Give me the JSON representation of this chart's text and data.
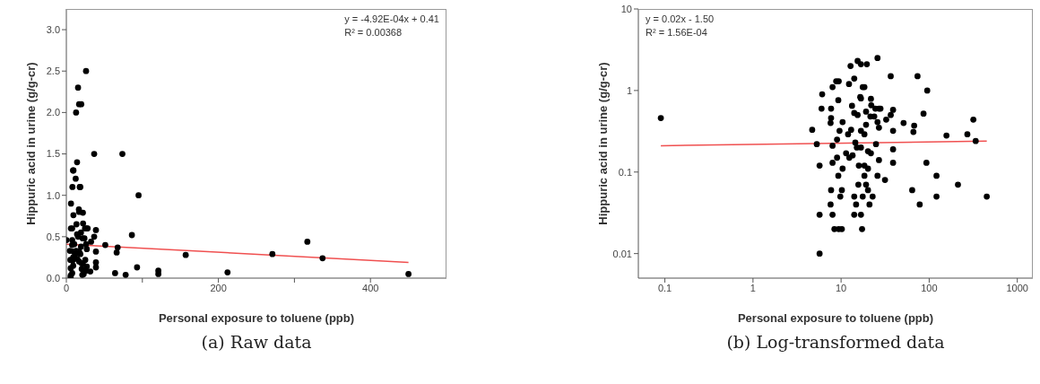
{
  "chart_data": [
    {
      "type": "scatter",
      "title": "(a) Raw data",
      "xlabel": "Personal exposure to toluene (ppb)",
      "ylabel": "Hippuric acid in urine (g/g-cr)",
      "annotations": [
        "y = -4.92E-04x + 0.41",
        "R² = 0.00368"
      ],
      "xlim": [
        0,
        500
      ],
      "xticks": [
        0,
        {
          "value": 100,
          "label": null
        },
        200,
        {
          "value": 300,
          "label": null
        },
        400
      ],
      "ylim": [
        0,
        3.25
      ],
      "yticks": [
        {
          "value": 0,
          "label": "0.0"
        },
        0.5,
        {
          "value": 1,
          "label": "1.0"
        },
        1.5,
        {
          "value": 2,
          "label": "2.0"
        },
        2.5,
        {
          "value": 3,
          "label": "3.0"
        }
      ],
      "grid": false,
      "legend": false,
      "marker": "circle",
      "series": [
        {
          "color": "#000000",
          "x": [
            0.09,
            4.7,
            5.7,
            5.7,
            5.7,
            5.3,
            6.1,
            6.0,
            7.7,
            8.0,
            8.8,
            9.4,
            9.3,
            7.7,
            7.7,
            7.6,
            8,
            9.0,
            9.6,
            10.4,
            9,
            12.8,
            12.3,
            14.1,
            15.4,
            16.8,
            19.6,
            17.6,
            18.4,
            16.5,
            16.8,
            13.3,
            14.1,
            15.4,
            13.0,
            12,
            14.5,
            16.8,
            16.8,
            18.4,
            19.2,
            19.2,
            21.8,
            22,
            21.5,
            23.8,
            24.5,
            26.9,
            28,
            25.9,
            26.9,
            24.9,
            26.9,
            20.2,
            21.8,
            20.2,
            22.8,
            21.0,
            25.9,
            25.9,
            31.5,
            36.6,
            38.9,
            36.6,
            32.5,
            38.9,
            38.9,
            38.9,
            51.2,
            67.5,
            66.2,
            64.1,
            73.7,
            78,
            86.2,
            95,
            93,
            121,
            121,
            157,
            212,
            271,
            317,
            337,
            450
          ],
          "values": [
            0.46,
            0.33,
            0.03,
            0.01,
            0.12,
            0.22,
            0.9,
            0.6,
            0.06,
            1.1,
            1.3,
            1.3,
            0.76,
            0.6,
            0.46,
            0.4,
            0.21,
            0.25,
            0.32,
            0.41,
            0.15,
            2.0,
            1.2,
            1.4,
            2.3,
            2.1,
            2.1,
            1.1,
            1.1,
            0.83,
            0.8,
            0.65,
            0.53,
            0.5,
            0.33,
            0.29,
            0.23,
            0.2,
            0.32,
            0.29,
            0.38,
            0.55,
            0.79,
            0.66,
            0.48,
            0.48,
            0.6,
            0.6,
            0.6,
            0.41,
            0.35,
            0.22,
            0.14,
            0.18,
            0.17,
            0.11,
            0.05,
            0.04,
            2.5,
            0.09,
            0.08,
            1.5,
            0.58,
            0.5,
            0.44,
            0.32,
            0.19,
            0.13,
            0.4,
            0.37,
            0.31,
            0.06,
            1.5,
            0.04,
            0.52,
            1.0,
            0.13,
            0.09,
            0.05,
            0.28,
            0.07,
            0.29,
            0.44,
            0.24,
            0.05
          ]
        },
        {
          "type": "line",
          "marker": "none",
          "color": "#f05050",
          "x": [
            0,
            450
          ],
          "values": [
            0.41,
            0.19
          ]
        }
      ]
    },
    {
      "type": "scatter",
      "title": "(b) Log-transformed data",
      "xlabel": "Personal exposure to toluene (ppb)",
      "ylabel": "Hippuric acid in urine (g/g-cr)",
      "annotations": [
        "y = 0.02x - 1.50",
        "R² = 1.56E-04"
      ],
      "log": "xy",
      "xlim": [
        0.05,
        1500
      ],
      "xticks": [
        0.1,
        1,
        10,
        100,
        1000
      ],
      "ylim": [
        0.005,
        10
      ],
      "yticks": [
        0.01,
        0.1,
        1,
        10
      ],
      "grid": false,
      "legend": false,
      "marker": "circle",
      "series": [
        {
          "color": "#000000",
          "x": [
            0.09,
            4.7,
            5.7,
            5.7,
            5.7,
            5.3,
            6.1,
            6.0,
            7.7,
            7.6,
            8.0,
            8.4,
            9.4,
            10.2,
            8.0,
            8.8,
            9.4,
            9.3,
            7.7,
            7.7,
            7.6,
            8,
            9.0,
            9.6,
            10.4,
            8,
            9,
            9.3,
            10.2,
            9.8,
            10.4,
            12.8,
            12.3,
            14.1,
            15.4,
            16.8,
            19.6,
            17.6,
            18.4,
            16.5,
            16.8,
            13.3,
            14.1,
            15.4,
            13.0,
            12,
            11.4,
            12.4,
            13.5,
            14.5,
            15.1,
            16.8,
            16.8,
            18.4,
            19.2,
            19.2,
            21.8,
            22,
            21.5,
            23.8,
            24.5,
            26.9,
            28,
            25.9,
            26.9,
            24.9,
            26.9,
            20.2,
            21.8,
            15.9,
            18.4,
            20.2,
            18.4,
            15.7,
            19.2,
            20.2,
            17.6,
            22.8,
            21.0,
            14.1,
            14.8,
            14.1,
            16.8,
            17.3,
            25.9,
            25.9,
            31.5,
            36.6,
            38.9,
            36.6,
            32.5,
            38.9,
            38.9,
            38.9,
            51.2,
            67.5,
            66.2,
            64.1,
            73.7,
            78,
            86.2,
            95,
            93,
            121,
            121,
            157,
            212,
            271,
            317,
            337,
            450
          ],
          "values": [
            0.46,
            0.33,
            0.03,
            0.01,
            0.12,
            0.22,
            0.9,
            0.6,
            0.06,
            0.04,
            0.03,
            0.02,
            0.02,
            0.02,
            1.1,
            1.3,
            1.3,
            0.76,
            0.6,
            0.46,
            0.4,
            0.21,
            0.25,
            0.32,
            0.41,
            0.13,
            0.15,
            0.09,
            0.06,
            0.05,
            0.11,
            2.0,
            1.2,
            1.4,
            2.3,
            2.1,
            2.1,
            1.1,
            1.1,
            0.83,
            0.8,
            0.65,
            0.53,
            0.5,
            0.33,
            0.29,
            0.17,
            0.15,
            0.16,
            0.23,
            0.2,
            0.2,
            0.32,
            0.29,
            0.38,
            0.55,
            0.79,
            0.66,
            0.48,
            0.48,
            0.6,
            0.6,
            0.6,
            0.41,
            0.35,
            0.22,
            0.14,
            0.18,
            0.17,
            0.12,
            0.12,
            0.11,
            0.09,
            0.07,
            0.07,
            0.06,
            0.05,
            0.05,
            0.04,
            0.05,
            0.04,
            0.03,
            0.03,
            0.02,
            2.5,
            0.09,
            0.08,
            1.5,
            0.58,
            0.5,
            0.44,
            0.32,
            0.19,
            0.13,
            0.4,
            0.37,
            0.31,
            0.06,
            1.5,
            0.04,
            0.52,
            1.0,
            0.13,
            0.09,
            0.05,
            0.28,
            0.07,
            0.29,
            0.44,
            0.24,
            0.05
          ]
        },
        {
          "type": "line",
          "marker": "none",
          "color": "#f05050",
          "x": [
            0.09,
            450
          ],
          "values": [
            0.21,
            0.24
          ]
        }
      ]
    }
  ]
}
